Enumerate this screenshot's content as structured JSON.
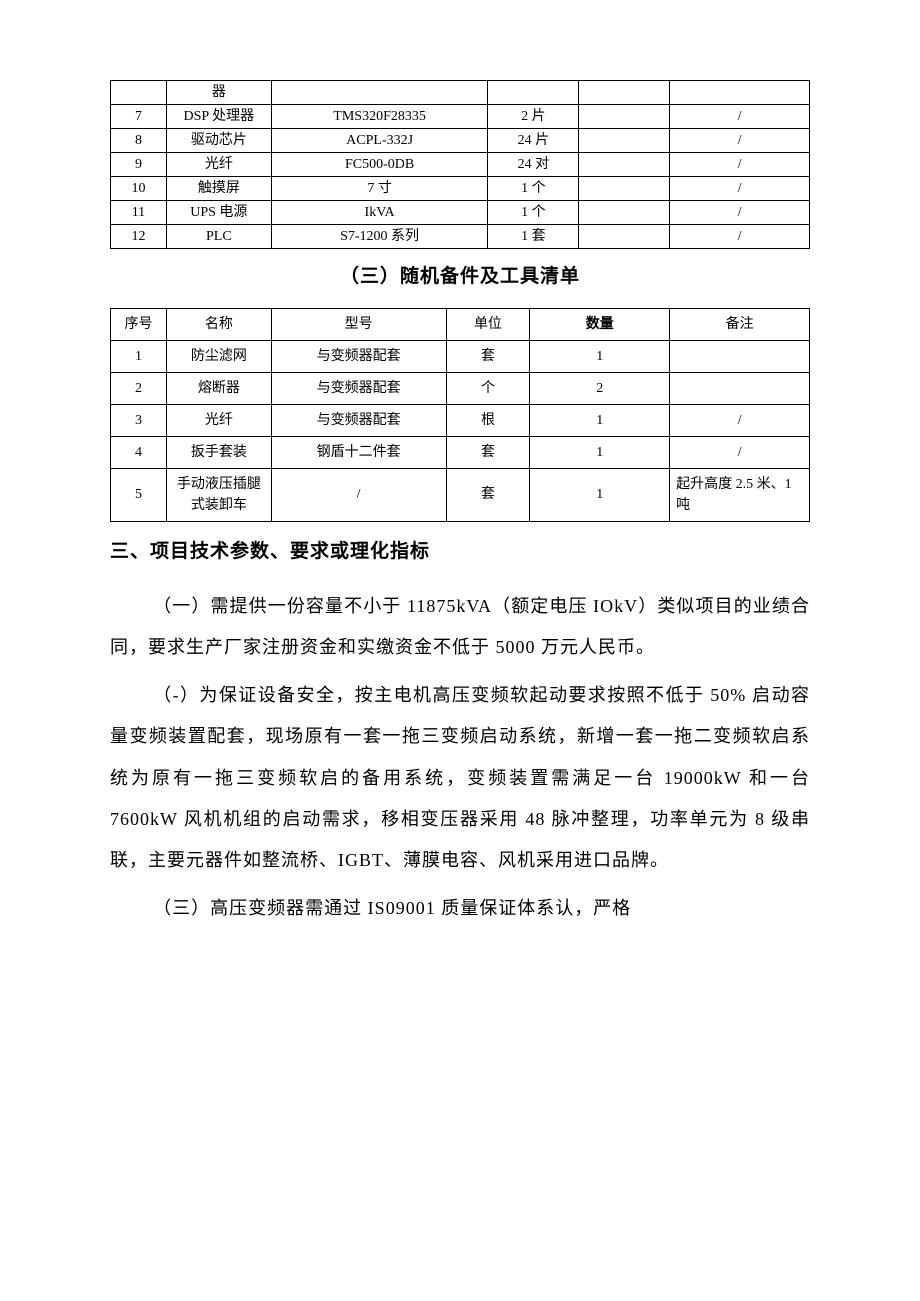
{
  "table1": {
    "rows": [
      {
        "no": "",
        "name": "器",
        "model": "",
        "qty": "",
        "c5": "",
        "note": ""
      },
      {
        "no": "7",
        "name": "DSP 处理器",
        "model": "TMS320F28335",
        "qty": "2 片",
        "c5": "",
        "note": "/"
      },
      {
        "no": "8",
        "name": "驱动芯片",
        "model": "ACPL-332J",
        "qty": "24 片",
        "c5": "",
        "note": "/"
      },
      {
        "no": "9",
        "name": "光纤",
        "model": "FC500-0DB",
        "qty": "24 对",
        "c5": "",
        "note": "/"
      },
      {
        "no": "10",
        "name": "触摸屏",
        "model": "7 寸",
        "qty": "1 个",
        "c5": "",
        "note": "/"
      },
      {
        "no": "11",
        "name": "UPS 电源",
        "model": "IkVA",
        "qty": "1 个",
        "c5": "",
        "note": "/"
      },
      {
        "no": "12",
        "name": "PLC",
        "model": "S7-1200 系列",
        "qty": "1 套",
        "c5": "",
        "note": "/"
      }
    ]
  },
  "sectionTitle": "（三）随机备件及工具清单",
  "table2": {
    "headers": {
      "no": "序号",
      "name": "名称",
      "model": "型号",
      "unit": "单位",
      "qty": "数量",
      "note": "备注"
    },
    "rows": [
      {
        "no": "1",
        "name": "防尘滤网",
        "model": "与变频器配套",
        "unit": "套",
        "qty": "1",
        "note": ""
      },
      {
        "no": "2",
        "name": "熔断器",
        "model": "与变频器配套",
        "unit": "个",
        "qty": "2",
        "note": ""
      },
      {
        "no": "3",
        "name": "光纤",
        "model": "与变频器配套",
        "unit": "根",
        "qty": "1",
        "note": "/"
      },
      {
        "no": "4",
        "name": "扳手套装",
        "model": "钢盾十二件套",
        "unit": "套",
        "qty": "1",
        "note": "/"
      },
      {
        "no": "5",
        "name": "手动液压插腿式装卸车",
        "model": "/",
        "unit": "套",
        "qty": "1",
        "note": "起升高度 2.5 米、1 吨",
        "tall": true
      }
    ]
  },
  "heading3": "三、项目技术参数、要求或理化指标",
  "para1": "（一）需提供一份容量不小于 11875kVA（额定电压 IOkV）类似项目的业绩合同，要求生产厂家注册资金和实缴资金不低于 5000 万元人民币。",
  "para2": "（-）为保证设备安全，按主电机高压变频软起动要求按照不低于 50% 启动容量变频装置配套，现场原有一套一拖三变频启动系统，新增一套一拖二变频软启系统为原有一拖三变频软启的备用系统，变频装置需满足一台 19000kW 和一台 7600kW 风机机组的启动需求，移相变压器采用 48 脉冲整理，功率单元为 8 级串联，主要元器件如整流桥、IGBT、薄膜电容、风机采用进口品牌。",
  "para3": "（三）高压变频器需通过 IS09001 质量保证体系认，严格"
}
